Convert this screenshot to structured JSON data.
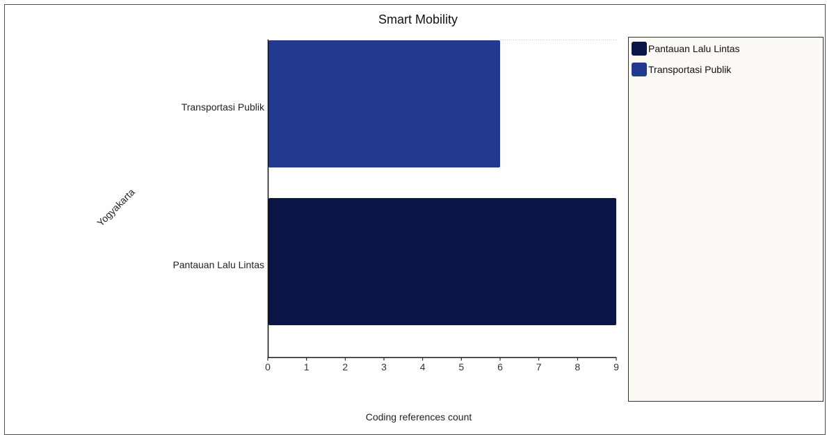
{
  "chart_data": {
    "type": "bar",
    "orientation": "horizontal",
    "title": "Smart Mobility",
    "group_label": "Yogyakarta",
    "xlabel": "Coding references count",
    "xlim": [
      0,
      9
    ],
    "xticks": [
      0,
      1,
      2,
      3,
      4,
      5,
      6,
      7,
      8,
      9
    ],
    "categories": [
      "Transportasi Publik",
      "Pantauan Lalu Lintas"
    ],
    "values": [
      6,
      9
    ],
    "colors": [
      "#213a8f",
      "#0c1646"
    ],
    "legend": {
      "placement": "right",
      "background": "#fdf9f4",
      "border_color": "#1b2a8a",
      "entries": [
        {
          "label": "Pantauan Lalu Lintas",
          "color": "#0c1646"
        },
        {
          "label": "Transportasi Publik",
          "color": "#213a8f"
        }
      ]
    },
    "grid": false
  }
}
